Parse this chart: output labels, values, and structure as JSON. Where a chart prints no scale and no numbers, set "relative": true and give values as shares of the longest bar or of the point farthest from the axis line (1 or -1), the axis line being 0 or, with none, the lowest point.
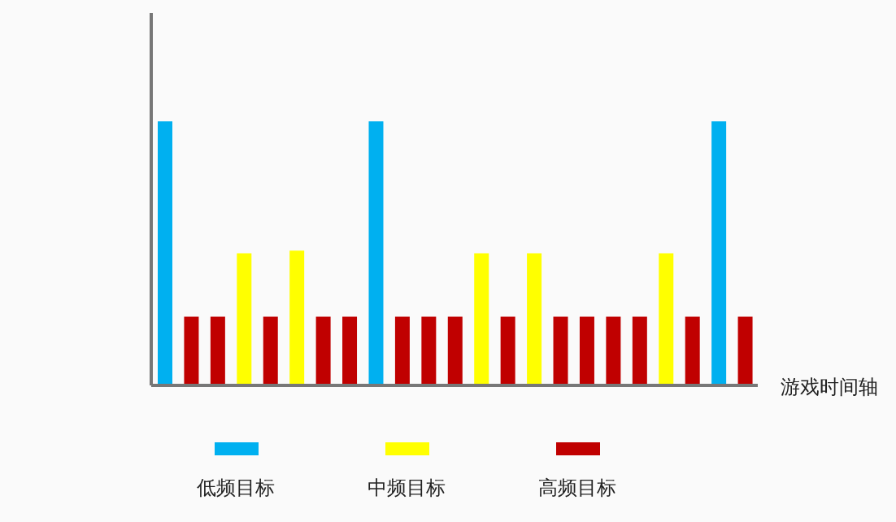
{
  "chart_data": {
    "type": "bar",
    "relative": true,
    "stacked": true,
    "xlabel": "游戏时间轴",
    "legend": "bottom",
    "categories": [
      null,
      null,
      null,
      null,
      null,
      null,
      null,
      null,
      null,
      null,
      null,
      null,
      null,
      null,
      null,
      null,
      null,
      null,
      null,
      null,
      null,
      null,
      null
    ],
    "series": [
      {
        "name": "低频目标",
        "color": "#00b0f0",
        "values": [
          1,
          null,
          null,
          null,
          null,
          null,
          null,
          null,
          1,
          null,
          null,
          null,
          null,
          null,
          null,
          null,
          null,
          null,
          null,
          null,
          null,
          1,
          null
        ]
      },
      {
        "name": "中频目标",
        "color": "#ffff00",
        "values": [
          null,
          null,
          null,
          0.5,
          null,
          0.51,
          null,
          null,
          null,
          null,
          null,
          null,
          0.5,
          null,
          0.5,
          null,
          null,
          null,
          null,
          0.5,
          null,
          null,
          null
        ]
      },
      {
        "name": "高频目标",
        "color": "#c00000",
        "values": [
          null,
          0.26,
          0.26,
          null,
          0.26,
          null,
          0.26,
          0.26,
          null,
          0.26,
          0.26,
          0.26,
          null,
          0.26,
          null,
          0.26,
          0.26,
          0.26,
          0.26,
          null,
          0.26,
          null,
          0.26
        ]
      }
    ]
  }
}
